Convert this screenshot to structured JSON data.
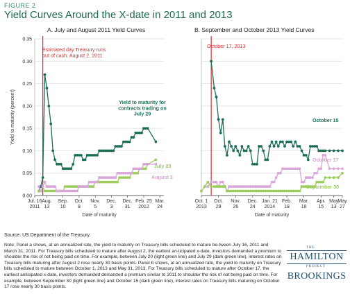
{
  "figure_label": "FIGURE 2",
  "title": "Yield Curves Around the X-date in 2011 and 2013",
  "source": "Source: US Department of the Treasury.",
  "note": "Note: Panel a shows, at an annualized rate, the yield to maturity on Treasury bills scheduled to mature be-tween July 16, 2011 and March 31, 2011. For Treasury bills scheduled to mature after August 2, the earliest an-ticipated x-date, investors demanded a premium to shoulder the risk of not being paid on time. For example, between July 20 (light green line) and July 29 (dark green line), interest rates on Treasury bills maturing after August 2 rose nearly 30 basis points. Panel b shows, at an annualized rate, the yield to maturity on Treasury bills scheduled to mature between October 1, 2013 and May 31, 2013. For Treasury bills scheduled to mature after October 17, the earliest anticipated x-date, investors demanded  demanded a premium similar to 2011 to shoulder the risk of not being paid on time. For example, between September 30 (light green line) and October 15 (dark green line), interest rates on Treasury bills maturing on October 17 rose nearly 30 basis points.",
  "logos": {
    "ham_the": "THE",
    "ham_name": "HAMILTON",
    "ham_project": "PROJECT",
    "brookings": "BROOKINGS"
  },
  "colors": {
    "dark_green": "#1d6e57",
    "light_green": "#9acd5a",
    "pink": "#d9a6d9",
    "red": "#d62d2d",
    "title_green": "#1f6b52"
  },
  "chart_data": [
    {
      "type": "line",
      "title": "A. July and August 2011 Yield Curves",
      "xlabel": "Date of maturity",
      "ylabel": "Yield to maturity (percent)",
      "ylim": [
        0,
        0.35
      ],
      "yticks": [
        "0.00",
        "0.05",
        "0.10",
        "0.15",
        "0.20",
        "0.25",
        "0.30",
        "0.35"
      ],
      "xticks": [
        {
          "x": 0,
          "label": [
            "Jul. 16",
            "2011"
          ]
        },
        {
          "x": 3,
          "label": [
            "Aug.",
            "13"
          ]
        },
        {
          "x": 7,
          "label": [
            "Sep.",
            "10"
          ]
        },
        {
          "x": 11,
          "label": [
            "Oct.",
            "8"
          ]
        },
        {
          "x": 15,
          "label": [
            "Nov.",
            "5"
          ]
        },
        {
          "x": 19,
          "label": [
            "Dec.",
            "3"
          ]
        },
        {
          "x": 23,
          "label": [
            "Dec.",
            "31"
          ]
        },
        {
          "x": 27,
          "label": [
            "Feb. 25",
            "2012"
          ]
        },
        {
          "x": 31,
          "label": [
            "Mar.",
            "24"
          ]
        }
      ],
      "xlim": [
        0,
        32
      ],
      "xdate": {
        "x": 2,
        "label": [
          "Estimated day Treasury runs",
          "out of cash: August 2, 2011"
        ]
      },
      "series": [
        {
          "name": "Yield to maturity for contracts trading on July 29",
          "label": [
            "Yield to maturity for",
            "contracts trading on",
            "July 29"
          ],
          "color": "#1d6e57",
          "x": [
            1,
            1.5,
            2,
            2.5,
            3,
            3.5,
            4,
            4.5,
            5,
            5.5,
            6,
            6.5,
            7,
            7.5,
            8,
            8.5,
            9,
            9.5,
            10,
            10.5,
            11,
            11.5,
            12,
            12.5,
            13,
            13.5,
            14,
            14.5,
            15,
            15.5,
            16,
            16.5,
            17,
            17.5,
            18,
            18.5,
            19,
            19.5,
            20,
            20.5,
            21,
            21.5,
            22,
            22.5,
            23,
            23.5,
            24,
            24.5,
            25,
            25.5,
            26,
            26.5,
            27,
            27.5,
            28,
            30
          ],
          "y": [
            0.01,
            0.02,
            0.04,
            0.27,
            0.24,
            0.2,
            0.16,
            0.1,
            0.08,
            0.07,
            0.07,
            0.07,
            0.06,
            0.06,
            0.06,
            0.06,
            0.06,
            0.07,
            0.09,
            0.09,
            0.09,
            0.09,
            0.08,
            0.08,
            0.09,
            0.09,
            0.09,
            0.09,
            0.09,
            0.09,
            0.1,
            0.1,
            0.1,
            0.1,
            0.1,
            0.1,
            0.1,
            0.1,
            0.11,
            0.11,
            0.11,
            0.11,
            0.12,
            0.12,
            0.12,
            0.12,
            0.13,
            0.13,
            0.14,
            0.14,
            0.14,
            0.14,
            0.15,
            0.15,
            0.15,
            0.12
          ]
        },
        {
          "name": "July 20",
          "label": [
            "July 20"
          ],
          "color": "#9acd5a",
          "x": [
            1,
            1.5,
            2,
            2.5,
            3,
            3.5,
            4,
            4.5,
            5,
            5.5,
            6,
            6.5,
            7,
            7.5,
            8,
            8.5,
            9,
            9.5,
            10,
            10.5,
            11,
            11.5,
            12,
            12.5,
            13,
            13.5,
            14,
            14.5,
            15,
            15.5,
            16,
            16.5,
            17,
            17.5,
            18,
            18.5,
            19,
            19.5,
            20,
            20.5,
            21,
            21.5,
            22,
            22.5,
            23,
            23.5,
            24,
            24.5,
            25,
            25.5,
            26,
            26.5,
            27,
            27.5,
            28,
            30
          ],
          "y": [
            0.01,
            0.01,
            0.02,
            0.01,
            0.01,
            0.01,
            0.01,
            0.01,
            0.01,
            0.01,
            0.01,
            0.01,
            0.01,
            0.02,
            0.02,
            0.02,
            0.02,
            0.02,
            0.02,
            0.02,
            0.02,
            0.02,
            0.02,
            0.02,
            0.02,
            0.02,
            0.02,
            0.02,
            0.03,
            0.03,
            0.03,
            0.03,
            0.03,
            0.03,
            0.03,
            0.03,
            0.03,
            0.03,
            0.03,
            0.03,
            0.04,
            0.04,
            0.04,
            0.04,
            0.04,
            0.04,
            0.05,
            0.05,
            0.05,
            0.05,
            0.06,
            0.06,
            0.06,
            0.06,
            0.07,
            0.08
          ]
        },
        {
          "name": "August 3",
          "label": [
            "August 3"
          ],
          "color": "#d9a6d9",
          "x": [
            1,
            1.5,
            2,
            2.5,
            3,
            3.5,
            4,
            4.5,
            5,
            5.5,
            6,
            6.5,
            7,
            7.5,
            8,
            8.5,
            9,
            9.5,
            10,
            10.5,
            11,
            11.5,
            12,
            12.5,
            13,
            13.5,
            14,
            14.5,
            15,
            15.5,
            16,
            16.5,
            17,
            17.5,
            18,
            18.5,
            19,
            19.5,
            20,
            20.5,
            21,
            21.5,
            22,
            22.5,
            23,
            23.5,
            24,
            24.5,
            25,
            25.5,
            26,
            26.5,
            27,
            27.5,
            28,
            30
          ],
          "y": [
            0.02,
            0.01,
            0.02,
            0.03,
            0.02,
            0.02,
            0.02,
            0.02,
            0.02,
            0.01,
            0.01,
            0.01,
            0.01,
            0.01,
            0.01,
            0.01,
            0.01,
            0.01,
            0.01,
            0.01,
            0.02,
            0.02,
            0.02,
            0.02,
            0.02,
            0.03,
            0.03,
            0.03,
            0.03,
            0.03,
            0.04,
            0.04,
            0.04,
            0.04,
            0.04,
            0.04,
            0.04,
            0.04,
            0.04,
            0.05,
            0.05,
            0.05,
            0.05,
            0.05,
            0.05,
            0.05,
            0.05,
            0.06,
            0.06,
            0.06,
            0.06,
            0.06,
            0.07,
            0.07,
            0.07,
            0.07
          ]
        }
      ]
    },
    {
      "type": "line",
      "title": "B. September and October 2013 Yield Curves",
      "xlabel": "Date of maturity",
      "ylabel": "Yield to maturity (percent)",
      "ylim": [
        0,
        0.35
      ],
      "xticks": [
        {
          "x": 0,
          "label": [
            "Oct. 1",
            "2013"
          ]
        },
        {
          "x": 4,
          "label": [
            "Oct.",
            "29"
          ]
        },
        {
          "x": 8,
          "label": [
            "Nov.",
            "26"
          ]
        },
        {
          "x": 12,
          "label": [
            "Dec.",
            "24"
          ]
        },
        {
          "x": 16,
          "label": [
            "Jan. 21",
            "2014"
          ]
        },
        {
          "x": 20,
          "label": [
            "Feb.",
            "18"
          ]
        },
        {
          "x": 24,
          "label": [
            "Mar.",
            "18"
          ]
        },
        {
          "x": 28,
          "label": [
            "Apr.",
            "15"
          ]
        },
        {
          "x": 31,
          "label": [
            "May",
            "13"
          ]
        },
        {
          "x": 33,
          "label": [
            "May",
            "27"
          ]
        }
      ],
      "xlim": [
        0,
        33
      ],
      "xdate": {
        "x": 2.3,
        "label": [
          "October 17, 2013"
        ]
      },
      "series": [
        {
          "name": "October 15",
          "label": [
            "October 15"
          ],
          "color": "#1d6e57",
          "x": [
            2.3,
            3,
            3.5,
            4,
            4.5,
            5,
            5.5,
            6,
            6.5,
            7,
            7.5,
            8,
            8.5,
            9,
            9.5,
            10,
            10.5,
            11,
            11.5,
            12,
            12.5,
            13,
            13.5,
            14,
            14.5,
            15,
            15.5,
            16,
            16.5,
            17,
            17.5,
            18,
            18.5,
            19,
            19.5,
            20,
            20.5,
            21,
            21.5,
            22,
            22.5,
            23,
            23.5,
            24,
            24.5,
            25,
            25.5,
            26,
            26.5,
            27,
            27.5,
            28,
            28.5,
            29,
            30,
            31,
            32,
            33
          ],
          "y": [
            0.3,
            0.24,
            0.22,
            0.17,
            0.14,
            0.17,
            0.11,
            0.09,
            0.12,
            0.11,
            0.1,
            0.11,
            0.1,
            0.09,
            0.11,
            0.1,
            0.1,
            0.11,
            0.1,
            0.07,
            0.07,
            0.07,
            0.11,
            0.11,
            0.1,
            0.08,
            0.08,
            0.11,
            0.12,
            0.11,
            0.12,
            0.11,
            0.12,
            0.12,
            0.11,
            0.12,
            0.12,
            0.12,
            0.11,
            0.12,
            0.11,
            0.11,
            0.1,
            0.09,
            0.09,
            0.08,
            0.11,
            0.11,
            0.11,
            0.11,
            0.1,
            0.1,
            0.1,
            0.1,
            0.1,
            0.1,
            0.1,
            0.1
          ]
        },
        {
          "name": "October 17",
          "label": [
            "October 17"
          ],
          "color": "#d9a6d9",
          "x": [
            0,
            0.8,
            1.5,
            2.3,
            3,
            3.5,
            4,
            4.5,
            5,
            5.5,
            6,
            6.5,
            7,
            7.5,
            8,
            8.5,
            9,
            9.5,
            10,
            10.5,
            11,
            11.5,
            12,
            12.5,
            13,
            13.5,
            14,
            14.5,
            15,
            15.5,
            16,
            16.5,
            17,
            17.5,
            18,
            18.5,
            19,
            19.5,
            20,
            20.5,
            21,
            21.5,
            22,
            22.5,
            23,
            23.5,
            24,
            24.5,
            25,
            25.5,
            26,
            26.5,
            27,
            27.5,
            28,
            28.5,
            29,
            30,
            31,
            32,
            33
          ],
          "y": [
            0.01,
            0.02,
            0.02,
            0.03,
            0.03,
            0.03,
            0.02,
            0.03,
            0.03,
            0.02,
            0.01,
            0.02,
            0.02,
            0.02,
            0.02,
            0.02,
            0.02,
            0.02,
            0.02,
            0.02,
            0.02,
            0.02,
            0.02,
            0.02,
            0.02,
            0.02,
            0.02,
            0.02,
            0.02,
            0.02,
            0.02,
            0.03,
            0.03,
            0.04,
            0.05,
            0.05,
            0.06,
            0.06,
            0.06,
            0.06,
            0.06,
            0.06,
            0.06,
            0.06,
            0.06,
            0.03,
            0.03,
            0.04,
            0.04,
            0.04,
            0.04,
            0.05,
            0.05,
            0.06,
            0.06,
            0.09,
            0.09,
            0.06,
            0.06,
            0.06,
            0.06
          ]
        },
        {
          "name": "September 30",
          "label": [
            "September 30"
          ],
          "color": "#9acd5a",
          "x": [
            0,
            0.8,
            1.5,
            2.3,
            3,
            3.5,
            4,
            4.5,
            5,
            5.5,
            6,
            6.5,
            7,
            7.5,
            8,
            8.5,
            9,
            9.5,
            10,
            10.5,
            11,
            11.5,
            12,
            12.5,
            13,
            13.5,
            14,
            14.5,
            15,
            15.5,
            16,
            16.5,
            17,
            17.5,
            18,
            18.5,
            19,
            19.5,
            20,
            20.5,
            21,
            21.5,
            22,
            22.5,
            23,
            23.5,
            24,
            24.5,
            25,
            25.5,
            26,
            26.5,
            27,
            27.5,
            28,
            28.5,
            29,
            30,
            31,
            32,
            33
          ],
          "y": [
            0.01,
            0.02,
            0.03,
            0.02,
            0.02,
            0.02,
            0.02,
            0.02,
            0.02,
            0.02,
            0.01,
            0.01,
            0.01,
            0.01,
            0.01,
            0.01,
            0.01,
            0.01,
            0.01,
            0.01,
            0.01,
            0.01,
            0.01,
            0.01,
            0.01,
            0.01,
            0.01,
            0.01,
            0.01,
            0.01,
            0.01,
            0.01,
            0.01,
            0.01,
            0.01,
            0.01,
            0.01,
            0.01,
            0.01,
            0.01,
            0.01,
            0.01,
            0.01,
            0.01,
            0.01,
            0.02,
            0.02,
            0.02,
            0.02,
            0.02,
            0.02,
            0.02,
            0.03,
            0.03,
            0.03,
            0.03,
            0.04,
            0.04,
            0.04,
            0.04,
            0.05
          ]
        }
      ]
    }
  ]
}
